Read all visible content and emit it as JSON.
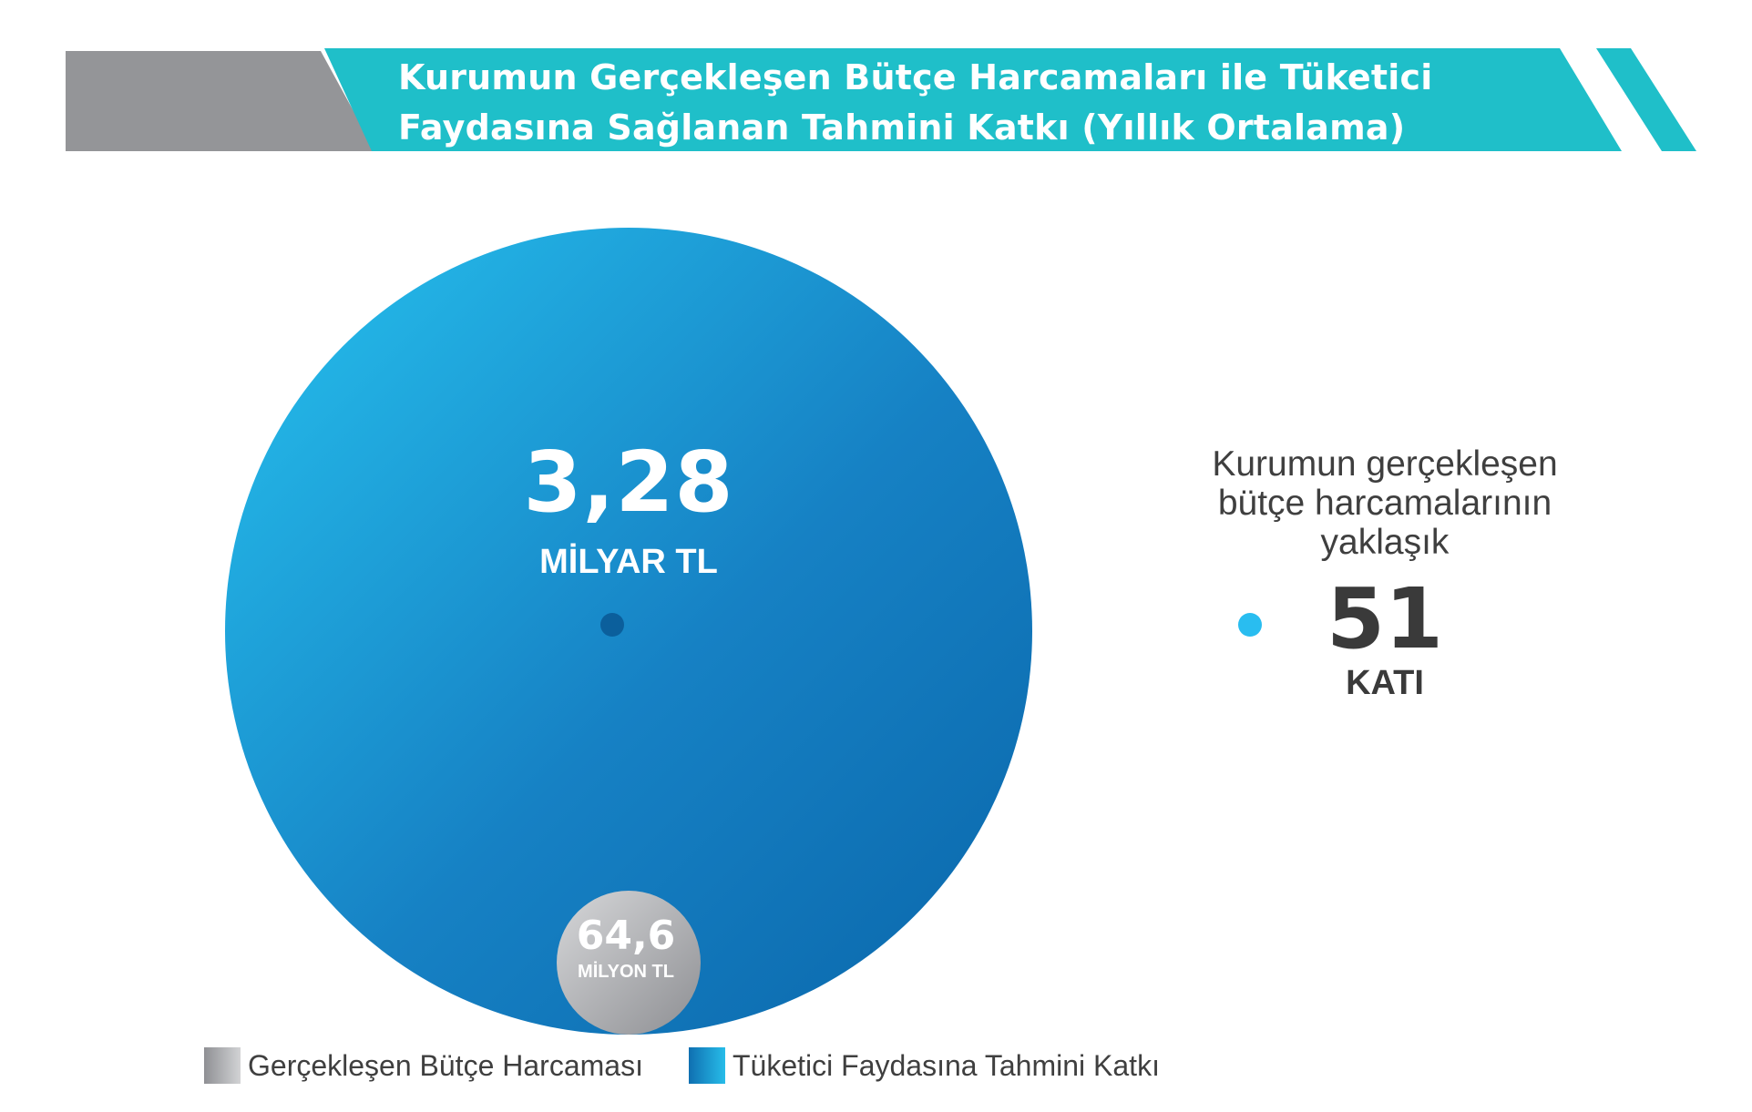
{
  "header": {
    "title_line1": "Kurumun Gerçekleşen Bütçe Harcamaları ile Tüketici",
    "title_line2": "Faydasına Sağlanan Tahmini Katkı (Yıllık Ortalama)"
  },
  "chart_data": {
    "type": "bubble",
    "series": [
      {
        "name": "Gerçekleşen Bütçe Harcaması",
        "value": 64.6,
        "unit": "MİLYON TL",
        "value_label": "64,6",
        "value_in_million_tl": 64.6,
        "color": "#a9aaad"
      },
      {
        "name": "Tüketici Faydasına Tahmini Katkı",
        "value": 3.28,
        "unit": "MİLYAR TL",
        "value_label": "3,28",
        "value_in_million_tl": 3280,
        "color": "#1a8fd1"
      }
    ],
    "ratio": {
      "description_lines": [
        "Kurumun gerçekleşen",
        "bütçe harcamalarının",
        "yaklaşık"
      ],
      "value": "51",
      "unit": "KATI"
    },
    "legend_position": "bottom-left"
  },
  "colors": {
    "banner_teal": "#1fbfc9",
    "banner_grey": "#949598",
    "big_circle_light": "#27bde9",
    "big_circle_dark": "#0a6aae",
    "connector_line": "#27b8e6",
    "text_dark": "#3a3a3a"
  }
}
